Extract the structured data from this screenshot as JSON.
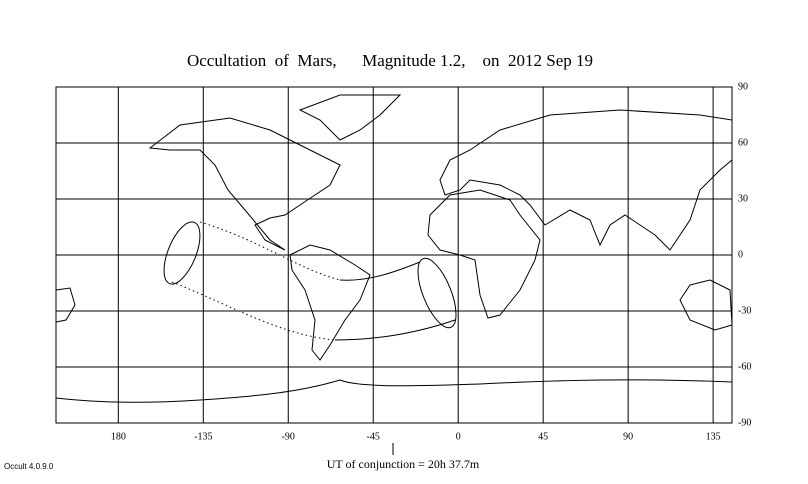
{
  "title": "Occultation  of  Mars,      Magnitude 1.2,    on  2012 Sep 19",
  "map": {
    "xlim": [
      -213,
      145
    ],
    "ylim": [
      -90,
      90
    ],
    "xticks": [
      {
        "value": -180,
        "label": "180"
      },
      -135,
      -90,
      -45,
      0,
      45,
      90,
      135
    ],
    "yticks": [
      90,
      60,
      30,
      0,
      -30,
      -60,
      -90
    ]
  },
  "footer": {
    "conjunction": "UT of conjunction = 20h 37.7m",
    "version": "Occult 4.0.9.0"
  }
}
